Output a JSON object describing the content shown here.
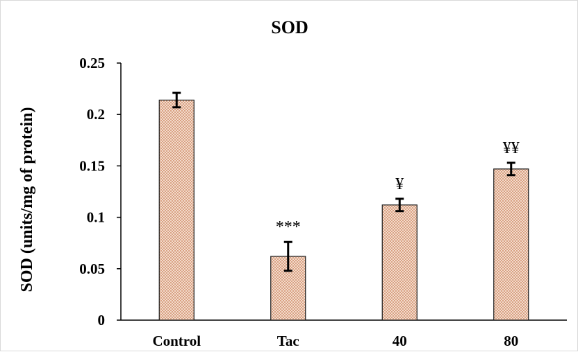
{
  "chart_data": {
    "type": "bar",
    "title": "SOD",
    "xlabel": "",
    "ylabel": "SOD (units/mg of protein)",
    "categories": [
      "Control",
      "Tac",
      "40",
      "80"
    ],
    "values": [
      0.214,
      0.062,
      0.112,
      0.147
    ],
    "errors": [
      0.007,
      0.014,
      0.006,
      0.006
    ],
    "annotations": [
      "",
      "***",
      "¥",
      "¥¥"
    ],
    "ylim": [
      0,
      0.25
    ],
    "yticks": [
      "0",
      "0.05",
      "0.1",
      "0.15",
      "0.2",
      "0.25"
    ],
    "grid": false,
    "legend": "none",
    "bar_fill": "#d9a183",
    "bar_pattern_dot": "#f3dccd",
    "bar_stroke": "#1a1a1a"
  }
}
